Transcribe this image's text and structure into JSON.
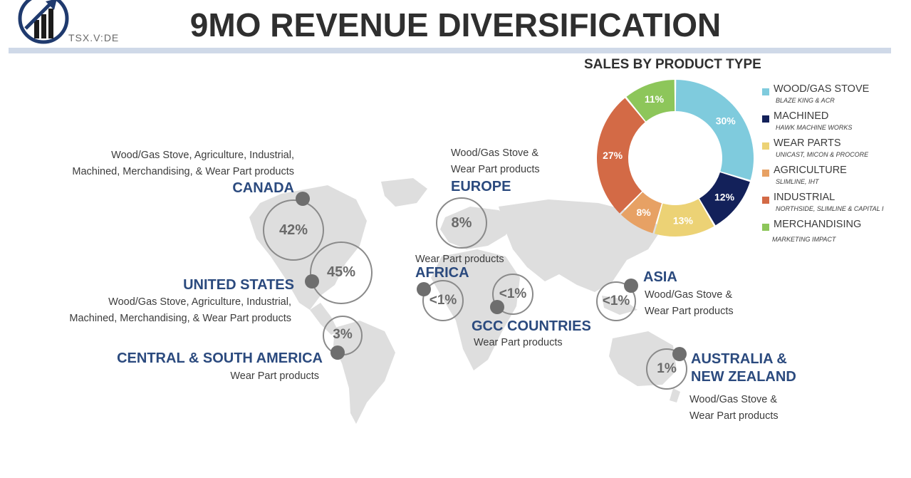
{
  "header": {
    "title": "9MO REVENUE DIVERSIFICATION",
    "ticker": "TSX.V:DE",
    "logo_icon": "bar-chart-arrow-logo-icon"
  },
  "regions": [
    {
      "id": "canada",
      "name": "CANADA",
      "pct": "42%",
      "desc1": "Wood/Gas Stove, Agriculture, Industrial,",
      "desc2": "Machined, Merchandising, & Wear Part products"
    },
    {
      "id": "united-states",
      "name": "UNITED STATES",
      "pct": "45%",
      "desc1": "Wood/Gas Stove, Agriculture, Industrial,",
      "desc2": "Machined, Merchandising, & Wear Part products"
    },
    {
      "id": "central-south-america",
      "name": "CENTRAL & SOUTH AMERICA",
      "pct": "3%",
      "desc1": "Wear Part products"
    },
    {
      "id": "europe",
      "name": "EUROPE",
      "pct": "8%",
      "desc1": "Wood/Gas Stove &",
      "desc2": "Wear Part products"
    },
    {
      "id": "africa",
      "name": "AFRICA",
      "pct": "<1%",
      "desc1": "Wear Part products"
    },
    {
      "id": "gcc",
      "name": "GCC COUNTRIES",
      "pct": "<1%",
      "desc1": "Wear Part products"
    },
    {
      "id": "asia",
      "name": "ASIA",
      "pct": "<1%",
      "desc1": "Wood/Gas Stove &",
      "desc2": "Wear Part products"
    },
    {
      "id": "australia-nz",
      "name1": "AUSTRALIA &",
      "name2": "NEW ZEALAND",
      "pct": "1%",
      "desc1": "Wood/Gas Stove &",
      "desc2": "Wear Part products"
    }
  ],
  "chart_data": {
    "type": "pie",
    "title": "SALES BY PRODUCT TYPE",
    "legend_position": "right",
    "slices": [
      {
        "label": "WOOD/GAS STOVE",
        "sub": "BLAZE KING & ACR",
        "value": 30,
        "color": "#7fcbdd"
      },
      {
        "label": "MACHINED",
        "sub": "HAWK MACHINE WORKS",
        "value": 12,
        "color": "#13215a"
      },
      {
        "label": "WEAR PARTS",
        "sub": "UNICAST, MICON & PROCORE",
        "value": 13,
        "color": "#ecd275"
      },
      {
        "label": "AGRICULTURE",
        "sub": "SLIMLINE, IHT",
        "value": 8,
        "color": "#e7a164"
      },
      {
        "label": "INDUSTRIAL",
        "sub": "NORTHSIDE, SLIMLINE & CAPITAL I",
        "value": 27,
        "color": "#d36a46"
      },
      {
        "label": "MERCHANDISING",
        "sub": "MARKETING IMPACT",
        "value": 11,
        "color": "#8dc65a"
      }
    ]
  }
}
